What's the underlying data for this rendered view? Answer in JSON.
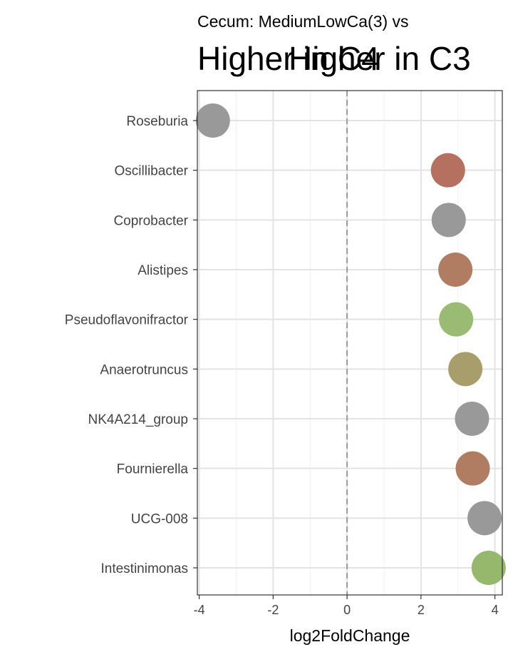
{
  "chart_data": {
    "type": "scatter",
    "title": "Cecum: MediumLowCa(3) vs",
    "annotations": [
      "Higher in C4",
      "Higher in C3"
    ],
    "xlabel": "log2FoldChange",
    "ylabel": "",
    "xlim": [
      -4.05,
      4.2
    ],
    "x_ticks": [
      -4,
      -2,
      0,
      2,
      4
    ],
    "x_tick_labels": [
      "-4",
      "-2",
      "0",
      "2",
      "4"
    ],
    "reference_line_x": 0,
    "grid": true,
    "categories": [
      "Roseburia",
      "Oscillibacter",
      "Coprobacter",
      "Alistipes",
      "Pseudoflavonifractor",
      "Anaerotruncus",
      "NK4A214_group",
      "Fournierella",
      "UCG-008",
      "Intestinimonas"
    ],
    "points": [
      {
        "genus": "Roseburia",
        "x": -3.63,
        "color": "#999999"
      },
      {
        "genus": "Oscillibacter",
        "x": 2.73,
        "color": "#b5705f"
      },
      {
        "genus": "Coprobacter",
        "x": 2.75,
        "color": "#999999"
      },
      {
        "genus": "Alistipes",
        "x": 2.93,
        "color": "#b07d62"
      },
      {
        "genus": "Pseudoflavonifractor",
        "x": 2.95,
        "color": "#9abb73"
      },
      {
        "genus": "Anaerotruncus",
        "x": 3.2,
        "color": "#a89e6b"
      },
      {
        "genus": "NK4A214_group",
        "x": 3.38,
        "color": "#999999"
      },
      {
        "genus": "Fournierella",
        "x": 3.4,
        "color": "#b07d62"
      },
      {
        "genus": "UCG-008",
        "x": 3.72,
        "color": "#999999"
      },
      {
        "genus": "Intestinimonas",
        "x": 3.83,
        "color": "#95b86c"
      }
    ]
  }
}
